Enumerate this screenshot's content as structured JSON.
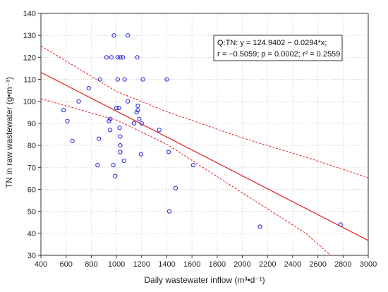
{
  "chart_data": {
    "type": "scatter",
    "xlabel": "Daily wastewater inflow (m³•d⁻¹)",
    "ylabel": "TN in raw wastewater (g•m⁻³)",
    "xlim": [
      400,
      3000
    ],
    "ylim": [
      30,
      140
    ],
    "xticks": [
      400,
      600,
      800,
      1000,
      1200,
      1400,
      1600,
      1800,
      2000,
      2200,
      2400,
      2600,
      2800,
      3000
    ],
    "yticks": [
      30,
      40,
      50,
      60,
      70,
      80,
      90,
      100,
      110,
      120,
      130,
      140
    ],
    "grid": true,
    "colors": {
      "points": "#2222dd",
      "fit": "#e02020",
      "confidence": "#e02020"
    },
    "points": [
      [
        580,
        96
      ],
      [
        610,
        91
      ],
      [
        650,
        82
      ],
      [
        700,
        100
      ],
      [
        780,
        106
      ],
      [
        850,
        71
      ],
      [
        860,
        83
      ],
      [
        870,
        110
      ],
      [
        920,
        120
      ],
      [
        940,
        91
      ],
      [
        950,
        87
      ],
      [
        950,
        92
      ],
      [
        960,
        120
      ],
      [
        975,
        71
      ],
      [
        980,
        130
      ],
      [
        990,
        66
      ],
      [
        1000,
        97
      ],
      [
        1010,
        110
      ],
      [
        1010,
        120
      ],
      [
        1020,
        97
      ],
      [
        1025,
        88
      ],
      [
        1030,
        120
      ],
      [
        1030,
        84
      ],
      [
        1030,
        80
      ],
      [
        1030,
        77
      ],
      [
        1050,
        120
      ],
      [
        1060,
        73
      ],
      [
        1065,
        110
      ],
      [
        1090,
        130
      ],
      [
        1090,
        100
      ],
      [
        1140,
        90
      ],
      [
        1160,
        95
      ],
      [
        1165,
        120
      ],
      [
        1170,
        96
      ],
      [
        1170,
        98
      ],
      [
        1180,
        92
      ],
      [
        1195,
        76
      ],
      [
        1200,
        90
      ],
      [
        1210,
        110
      ],
      [
        1340,
        87
      ],
      [
        1400,
        110
      ],
      [
        1415,
        77
      ],
      [
        1420,
        50
      ],
      [
        1470,
        60.5
      ],
      [
        1610,
        71
      ],
      [
        2140,
        43
      ],
      [
        2780,
        44
      ]
    ],
    "fit": {
      "intercept": 124.9402,
      "slope": -0.0294
    },
    "confidence_band": {
      "upper": [
        [
          400,
          125.2
        ],
        [
          1000,
          104.5
        ],
        [
          1400,
          95.3
        ],
        [
          2000,
          83.4
        ],
        [
          2500,
          74.7
        ],
        [
          3000,
          65.3
        ]
      ],
      "lower": [
        [
          400,
          101.2
        ],
        [
          1000,
          91.5
        ],
        [
          1400,
          80.5
        ],
        [
          2000,
          58.4
        ],
        [
          2500,
          40.2
        ],
        [
          2700,
          30.0
        ]
      ]
    },
    "legend": {
      "line1": "Q:TN:   y = 124.9402 − 0.0294*x;",
      "line2": "r = −0.5059; p = 0.0002; r² = 0.2559"
    }
  }
}
